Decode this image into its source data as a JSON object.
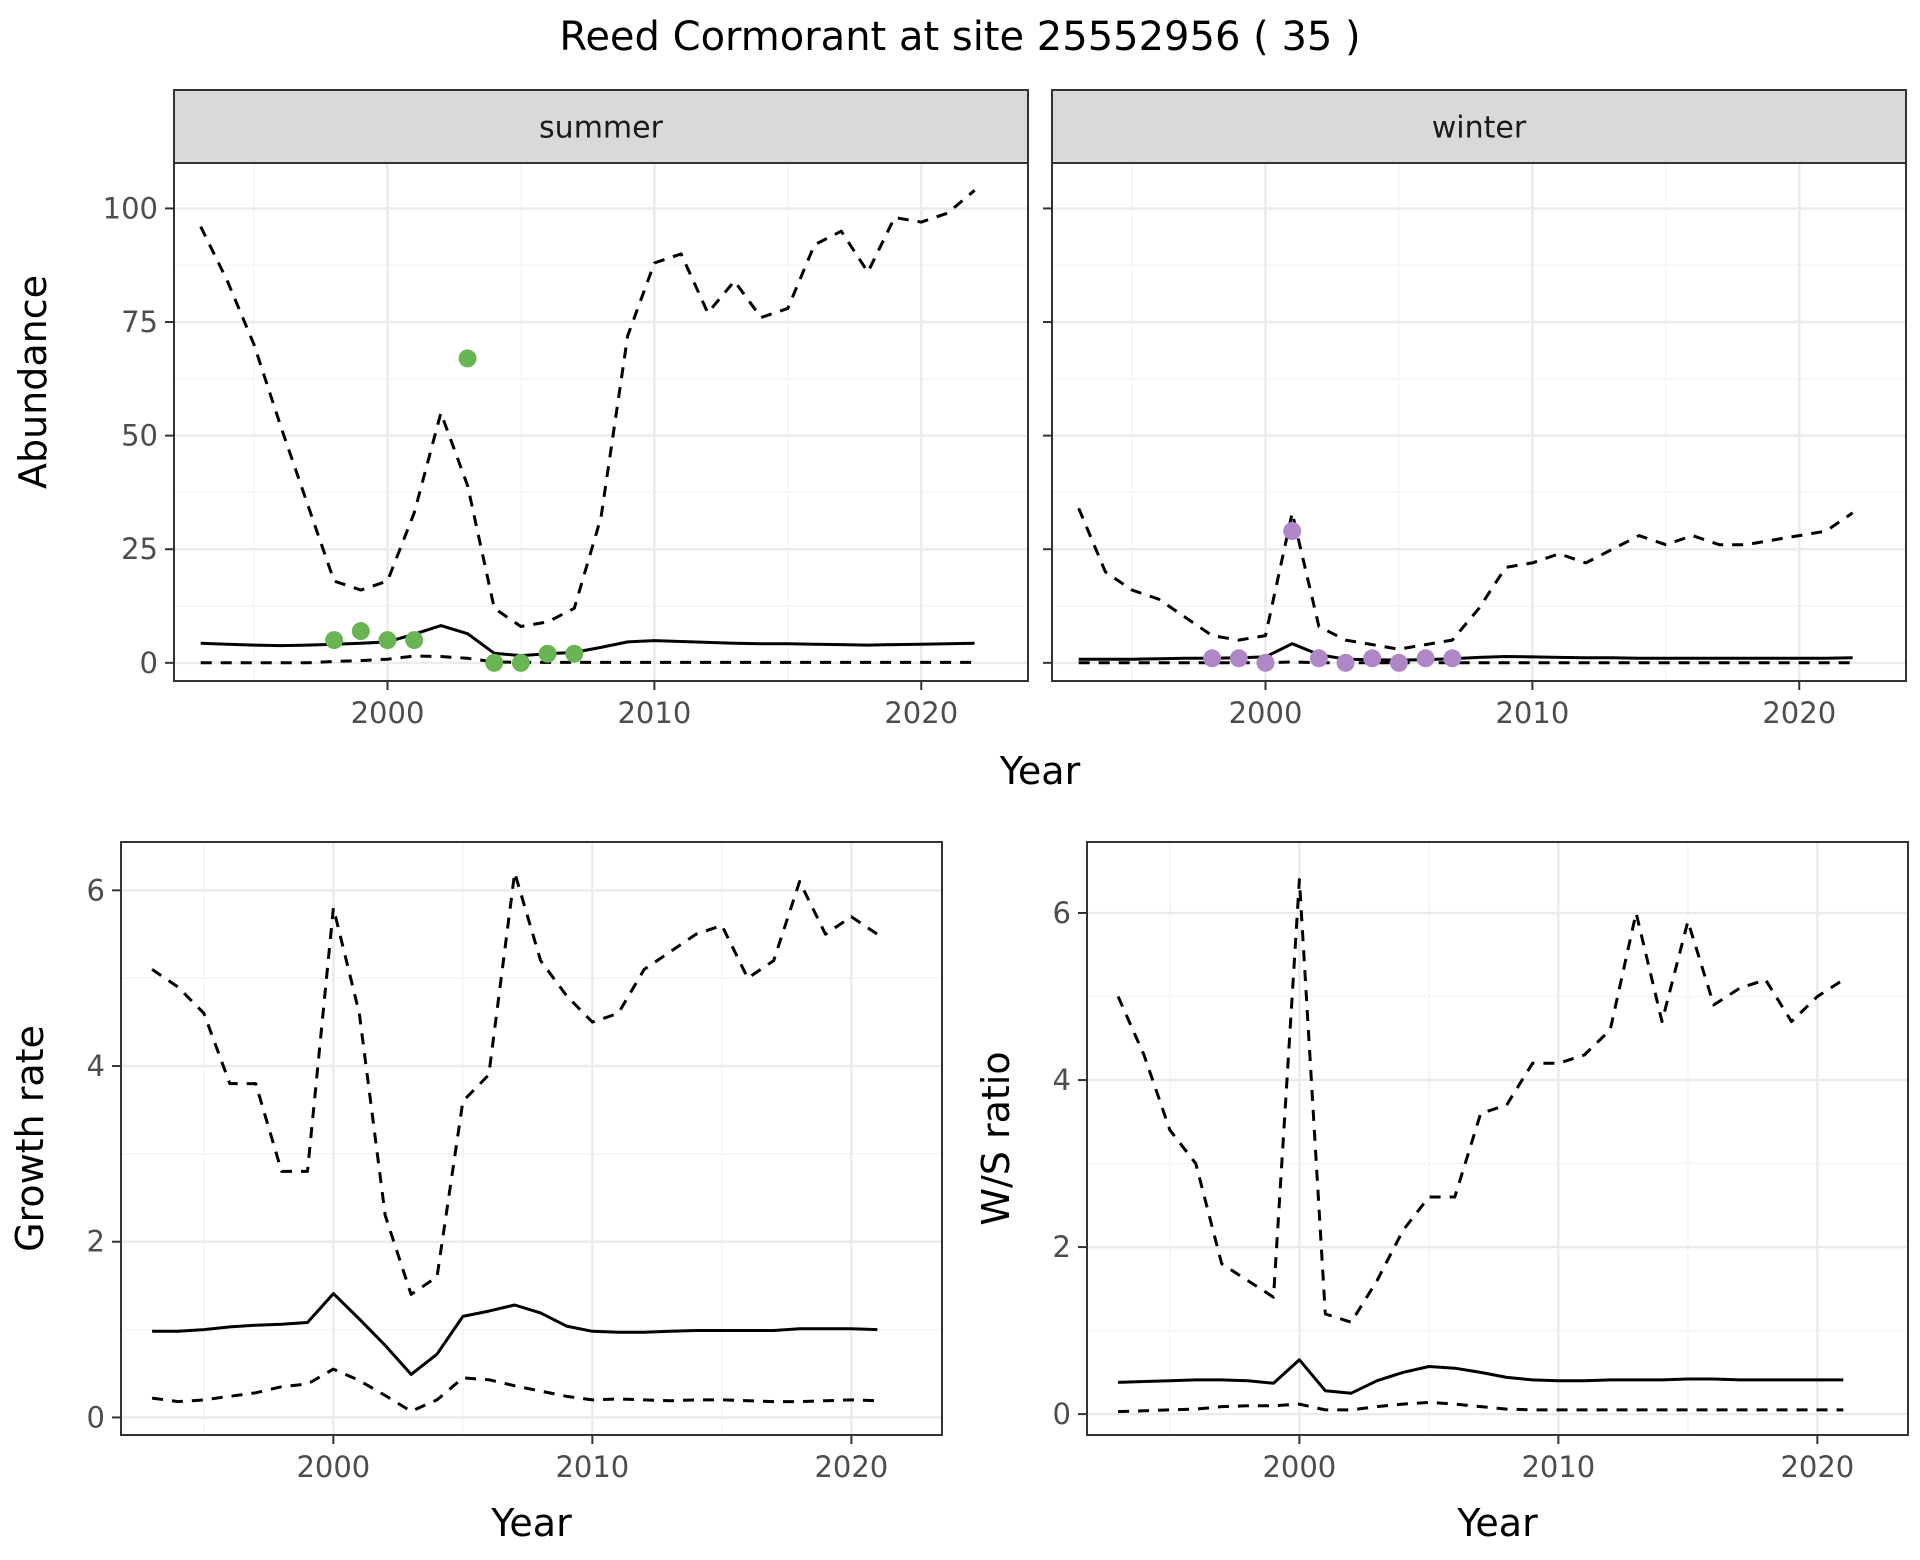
{
  "title": "Reed Cormorant at site 25552956 ( 35 )",
  "colors": {
    "summer_points": "#6ab553",
    "winter_points": "#b087c6",
    "line": "#000000",
    "grid_major": "#ebebeb",
    "grid_minor": "#f5f5f5",
    "strip_fill": "#d9d9d9"
  },
  "chart_data": [
    {
      "type": "line",
      "facet": "summer",
      "xlabel": "Year",
      "ylabel": "Abundance",
      "xlim": [
        1992,
        2024
      ],
      "ylim": [
        -4,
        110
      ],
      "x_ticks": [
        2000,
        2010,
        2020
      ],
      "y_ticks": [
        0,
        25,
        50,
        75,
        100
      ],
      "grid": true,
      "series": [
        {
          "style": "solid",
          "x": [
            1993,
            1994,
            1995,
            1996,
            1997,
            1998,
            1999,
            2000,
            2001,
            2002,
            2003,
            2004,
            2005,
            2006,
            2007,
            2008,
            2009,
            2010,
            2011,
            2012,
            2013,
            2014,
            2015,
            2016,
            2017,
            2018,
            2019,
            2020,
            2021,
            2022
          ],
          "values": [
            4.3,
            4.1,
            3.9,
            3.8,
            3.9,
            4.1,
            4.3,
            4.6,
            6.3,
            8.2,
            6.4,
            2.1,
            1.6,
            2.0,
            2.3,
            3.4,
            4.6,
            4.9,
            4.7,
            4.5,
            4.3,
            4.2,
            4.2,
            4.1,
            4.0,
            3.9,
            4.0,
            4.1,
            4.2,
            4.3
          ]
        },
        {
          "style": "dashed",
          "x": [
            1993,
            1994,
            1995,
            1996,
            1997,
            1998,
            1999,
            2000,
            2001,
            2002,
            2003,
            2004,
            2005,
            2006,
            2007,
            2008,
            2009,
            2010,
            2011,
            2012,
            2013,
            2014,
            2015,
            2016,
            2017,
            2018,
            2019,
            2020,
            2021,
            2022
          ],
          "values": [
            96,
            84,
            70,
            52,
            35,
            18,
            16,
            18,
            33,
            55,
            39,
            12,
            8,
            9,
            12,
            32,
            72,
            88,
            90,
            77,
            84,
            76,
            78,
            92,
            95,
            86,
            98,
            97,
            99,
            104
          ]
        },
        {
          "style": "dashed",
          "x": [
            1993,
            1994,
            1995,
            1996,
            1997,
            1998,
            1999,
            2000,
            2001,
            2002,
            2003,
            2004,
            2005,
            2006,
            2007,
            2008,
            2009,
            2010,
            2011,
            2012,
            2013,
            2014,
            2015,
            2016,
            2017,
            2018,
            2019,
            2020,
            2021,
            2022
          ],
          "values": [
            0,
            0,
            0,
            0,
            0,
            0.3,
            0.5,
            0.8,
            1.5,
            1.4,
            1.0,
            0.2,
            0.1,
            0.1,
            0.1,
            0.1,
            0.1,
            0.1,
            0.1,
            0.1,
            0.1,
            0.1,
            0.1,
            0.1,
            0.1,
            0.1,
            0.1,
            0.1,
            0.1,
            0.1
          ]
        },
        {
          "style": "points",
          "x": [
            1998,
            1999,
            2000,
            2001,
            2003,
            2004,
            2005,
            2006,
            2007
          ],
          "values": [
            5,
            7,
            5,
            5,
            67,
            0,
            0,
            2,
            2
          ]
        }
      ]
    },
    {
      "type": "line",
      "facet": "winter",
      "xlabel": "Year",
      "ylabel": "Abundance",
      "xlim": [
        1992,
        2024
      ],
      "ylim": [
        -4,
        110
      ],
      "x_ticks": [
        2000,
        2010,
        2020
      ],
      "y_ticks": [
        0,
        25,
        50,
        75,
        100
      ],
      "grid": true,
      "series": [
        {
          "style": "solid",
          "x": [
            1993,
            1994,
            1995,
            1996,
            1997,
            1998,
            1999,
            2000,
            2001,
            2002,
            2003,
            2004,
            2005,
            2006,
            2007,
            2008,
            2009,
            2010,
            2011,
            2012,
            2013,
            2014,
            2015,
            2016,
            2017,
            2018,
            2019,
            2020,
            2021,
            2022
          ],
          "values": [
            0.8,
            0.8,
            0.8,
            0.9,
            1.0,
            1.0,
            1.1,
            1.3,
            4.2,
            1.8,
            0.8,
            0.7,
            0.6,
            0.7,
            0.9,
            1.2,
            1.4,
            1.3,
            1.2,
            1.1,
            1.1,
            1.0,
            1.0,
            1.0,
            1.0,
            1.0,
            1.0,
            1.0,
            1.0,
            1.1
          ]
        },
        {
          "style": "dashed",
          "x": [
            1993,
            1994,
            1995,
            1996,
            1997,
            1998,
            1999,
            2000,
            2001,
            2002,
            2003,
            2004,
            2005,
            2006,
            2007,
            2008,
            2009,
            2010,
            2011,
            2012,
            2013,
            2014,
            2015,
            2016,
            2017,
            2018,
            2019,
            2020,
            2021,
            2022
          ],
          "values": [
            34,
            20,
            16,
            14,
            10,
            6,
            5,
            6,
            33,
            8,
            5,
            4,
            3,
            4,
            5,
            12,
            21,
            22,
            24,
            22,
            25,
            28,
            26,
            28,
            26,
            26,
            27,
            28,
            29,
            33
          ]
        },
        {
          "style": "dashed",
          "x": [
            1993,
            1994,
            1995,
            1996,
            1997,
            1998,
            1999,
            2000,
            2001,
            2002,
            2003,
            2004,
            2005,
            2006,
            2007,
            2008,
            2009,
            2010,
            2011,
            2012,
            2013,
            2014,
            2015,
            2016,
            2017,
            2018,
            2019,
            2020,
            2021,
            2022
          ],
          "values": [
            0,
            0,
            0,
            0,
            0,
            0,
            0,
            0,
            0.2,
            0,
            0,
            0,
            0,
            0,
            0,
            0,
            0,
            0,
            0,
            0,
            0,
            0,
            0,
            0,
            0,
            0,
            0,
            0,
            0,
            0
          ]
        },
        {
          "style": "points",
          "x": [
            1998,
            1999,
            2000,
            2001,
            2002,
            2003,
            2004,
            2005,
            2006,
            2007
          ],
          "values": [
            1,
            1,
            0,
            29,
            1,
            0,
            1,
            0,
            1,
            1
          ]
        }
      ]
    },
    {
      "type": "line",
      "xlabel": "Year",
      "ylabel": "Growth rate",
      "xlim": [
        1991.8,
        2023.5
      ],
      "ylim": [
        -0.2,
        6.55
      ],
      "x_ticks": [
        2000,
        2010,
        2020
      ],
      "y_ticks": [
        0,
        2,
        4,
        6
      ],
      "grid": true,
      "series": [
        {
          "style": "solid",
          "x": [
            1993,
            1994,
            1995,
            1996,
            1997,
            1998,
            1999,
            2000,
            2001,
            2002,
            2003,
            2004,
            2005,
            2006,
            2007,
            2008,
            2009,
            2010,
            2011,
            2012,
            2013,
            2014,
            2015,
            2016,
            2017,
            2018,
            2019,
            2020,
            2021
          ],
          "values": [
            0.98,
            0.98,
            1.0,
            1.03,
            1.05,
            1.06,
            1.08,
            1.41,
            1.12,
            0.82,
            0.49,
            0.72,
            1.15,
            1.21,
            1.28,
            1.19,
            1.04,
            0.98,
            0.97,
            0.97,
            0.98,
            0.99,
            0.99,
            0.99,
            0.99,
            1.01,
            1.01,
            1.01,
            1.0
          ]
        },
        {
          "style": "dashed",
          "x": [
            1993,
            1994,
            1995,
            1996,
            1997,
            1998,
            1999,
            2000,
            2001,
            2002,
            2003,
            2004,
            2005,
            2006,
            2007,
            2008,
            2009,
            2010,
            2011,
            2012,
            2013,
            2014,
            2015,
            2016,
            2017,
            2018,
            2019,
            2020,
            2021
          ],
          "values": [
            5.1,
            4.9,
            4.6,
            3.8,
            3.8,
            2.8,
            2.8,
            5.8,
            4.6,
            2.3,
            1.4,
            1.6,
            3.6,
            3.9,
            6.2,
            5.2,
            4.8,
            4.5,
            4.6,
            5.1,
            5.3,
            5.5,
            5.6,
            5.0,
            5.2,
            6.1,
            5.5,
            5.7,
            5.5
          ]
        },
        {
          "style": "dashed",
          "x": [
            1993,
            1994,
            1995,
            1996,
            1997,
            1998,
            1999,
            2000,
            2001,
            2002,
            2003,
            2004,
            2005,
            2006,
            2007,
            2008,
            2009,
            2010,
            2011,
            2012,
            2013,
            2014,
            2015,
            2016,
            2017,
            2018,
            2019,
            2020,
            2021
          ],
          "values": [
            0.22,
            0.18,
            0.2,
            0.24,
            0.28,
            0.35,
            0.38,
            0.55,
            0.42,
            0.25,
            0.07,
            0.2,
            0.45,
            0.43,
            0.36,
            0.3,
            0.24,
            0.2,
            0.21,
            0.2,
            0.19,
            0.2,
            0.2,
            0.19,
            0.18,
            0.18,
            0.19,
            0.2,
            0.19
          ]
        }
      ]
    },
    {
      "type": "line",
      "xlabel": "Year",
      "ylabel": "W/S ratio",
      "xlim": [
        1991.8,
        2023.5
      ],
      "ylim": [
        -0.25,
        6.85
      ],
      "x_ticks": [
        2000,
        2010,
        2020
      ],
      "y_ticks": [
        0,
        2,
        4,
        6
      ],
      "grid": true,
      "series": [
        {
          "style": "solid",
          "x": [
            1993,
            1994,
            1995,
            1996,
            1997,
            1998,
            1999,
            2000,
            2001,
            2002,
            2003,
            2004,
            2005,
            2006,
            2007,
            2008,
            2009,
            2010,
            2011,
            2012,
            2013,
            2014,
            2015,
            2016,
            2017,
            2018,
            2019,
            2020,
            2021
          ],
          "values": [
            0.38,
            0.39,
            0.4,
            0.41,
            0.41,
            0.4,
            0.37,
            0.65,
            0.28,
            0.25,
            0.4,
            0.5,
            0.57,
            0.55,
            0.5,
            0.44,
            0.41,
            0.4,
            0.4,
            0.41,
            0.41,
            0.41,
            0.42,
            0.42,
            0.41,
            0.41,
            0.41,
            0.41,
            0.41
          ]
        },
        {
          "style": "dashed",
          "x": [
            1993,
            1994,
            1995,
            1996,
            1997,
            1998,
            1999,
            2000,
            2001,
            2002,
            2003,
            2004,
            2005,
            2006,
            2007,
            2008,
            2009,
            2010,
            2011,
            2012,
            2013,
            2014,
            2015,
            2016,
            2017,
            2018,
            2019,
            2020,
            2021
          ],
          "values": [
            5.0,
            4.3,
            3.4,
            3.0,
            1.8,
            1.6,
            1.4,
            6.4,
            1.2,
            1.1,
            1.6,
            2.2,
            2.6,
            2.6,
            3.6,
            3.7,
            4.2,
            4.2,
            4.3,
            4.6,
            6.0,
            4.7,
            5.9,
            4.9,
            5.1,
            5.2,
            4.7,
            5.0,
            5.2
          ]
        },
        {
          "style": "dashed",
          "x": [
            1993,
            1994,
            1995,
            1996,
            1997,
            1998,
            1999,
            2000,
            2001,
            2002,
            2003,
            2004,
            2005,
            2006,
            2007,
            2008,
            2009,
            2010,
            2011,
            2012,
            2013,
            2014,
            2015,
            2016,
            2017,
            2018,
            2019,
            2020,
            2021
          ],
          "values": [
            0.03,
            0.04,
            0.05,
            0.06,
            0.09,
            0.1,
            0.1,
            0.12,
            0.05,
            0.05,
            0.09,
            0.12,
            0.14,
            0.12,
            0.09,
            0.06,
            0.05,
            0.05,
            0.05,
            0.05,
            0.05,
            0.05,
            0.05,
            0.05,
            0.05,
            0.05,
            0.05,
            0.05,
            0.05
          ]
        }
      ]
    }
  ]
}
